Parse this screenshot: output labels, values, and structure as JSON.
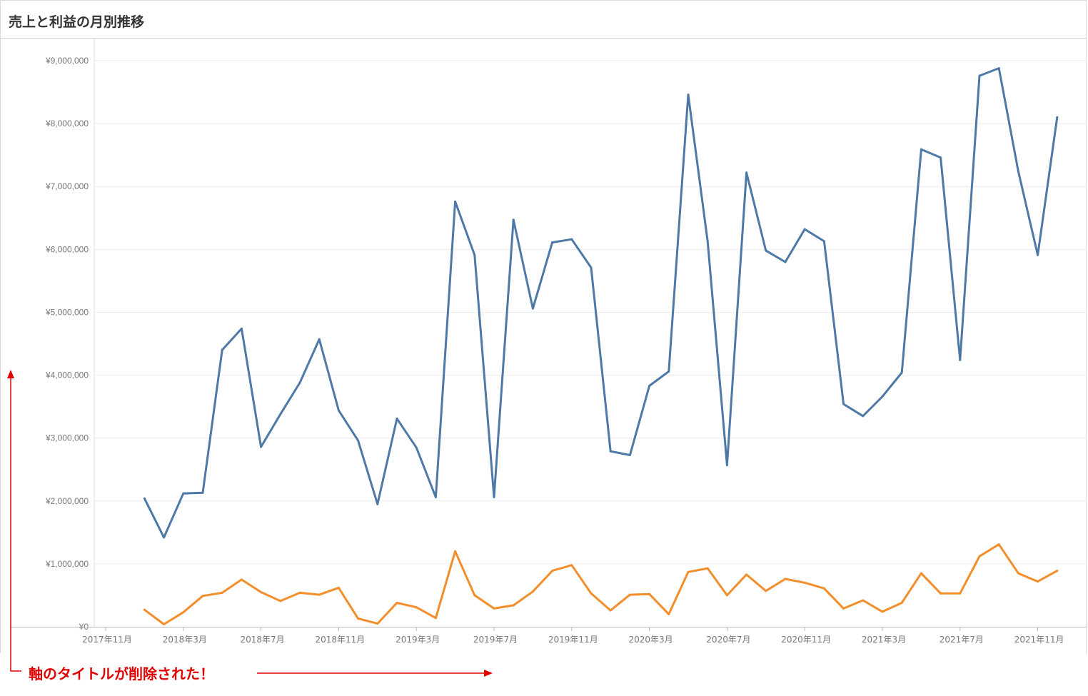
{
  "title": "売上と利益の月別推移",
  "annotation": "軸のタイトルが削除された！",
  "colors": {
    "sales": "#4e79a7",
    "profit": "#f28e2b",
    "annotation": "#e00000",
    "grid": "#ececec"
  },
  "chart_data": {
    "type": "line",
    "title": "売上と利益の月別推移",
    "xlabel": "",
    "ylabel": "",
    "ylim": [
      0,
      9000000
    ],
    "y_ticks": [
      {
        "value": 0,
        "label": "¥0"
      },
      {
        "value": 1000000,
        "label": "¥1,000,000"
      },
      {
        "value": 2000000,
        "label": "¥2,000,000"
      },
      {
        "value": 3000000,
        "label": "¥3,000,000"
      },
      {
        "value": 4000000,
        "label": "¥4,000,000"
      },
      {
        "value": 5000000,
        "label": "¥5,000,000"
      },
      {
        "value": 6000000,
        "label": "¥6,000,000"
      },
      {
        "value": 7000000,
        "label": "¥7,000,000"
      },
      {
        "value": 8000000,
        "label": "¥8,000,000"
      },
      {
        "value": 9000000,
        "label": "¥9,000,000"
      }
    ],
    "x": [
      "2018-01",
      "2018-02",
      "2018-03",
      "2018-04",
      "2018-05",
      "2018-06",
      "2018-07",
      "2018-08",
      "2018-09",
      "2018-10",
      "2018-11",
      "2018-12",
      "2019-01",
      "2019-02",
      "2019-03",
      "2019-04",
      "2019-05",
      "2019-06",
      "2019-07",
      "2019-08",
      "2019-09",
      "2019-10",
      "2019-11",
      "2019-12",
      "2020-01",
      "2020-02",
      "2020-03",
      "2020-04",
      "2020-05",
      "2020-06",
      "2020-07",
      "2020-08",
      "2020-09",
      "2020-10",
      "2020-11",
      "2020-12",
      "2021-01",
      "2021-02",
      "2021-03",
      "2021-04",
      "2021-05",
      "2021-06",
      "2021-07",
      "2021-08",
      "2021-09",
      "2021-10",
      "2021-11",
      "2021-12"
    ],
    "x_ticks": [
      {
        "value": "2017-11",
        "label": "2017年11月"
      },
      {
        "value": "2018-03",
        "label": "2018年3月"
      },
      {
        "value": "2018-07",
        "label": "2018年7月"
      },
      {
        "value": "2018-11",
        "label": "2018年11月"
      },
      {
        "value": "2019-03",
        "label": "2019年3月"
      },
      {
        "value": "2019-07",
        "label": "2019年7月"
      },
      {
        "value": "2019-11",
        "label": "2019年11月"
      },
      {
        "value": "2020-03",
        "label": "2020年3月"
      },
      {
        "value": "2020-07",
        "label": "2020年7月"
      },
      {
        "value": "2020-11",
        "label": "2020年11月"
      },
      {
        "value": "2021-03",
        "label": "2021年3月"
      },
      {
        "value": "2021-07",
        "label": "2021年7月"
      },
      {
        "value": "2021-11",
        "label": "2021年11月"
      }
    ],
    "series": [
      {
        "values": [
          2040000,
          1420000,
          2120000,
          2130000,
          4400000,
          4740000,
          2860000,
          3380000,
          3880000,
          4570000,
          3440000,
          2960000,
          1950000,
          3310000,
          2850000,
          2060000,
          6760000,
          5910000,
          2060000,
          6470000,
          5060000,
          6110000,
          6160000,
          5710000,
          2790000,
          2730000,
          3830000,
          4060000,
          8460000,
          6130000,
          2570000,
          7220000,
          5980000,
          5800000,
          6320000,
          6130000,
          3540000,
          3350000,
          3660000,
          4040000,
          7590000,
          7460000,
          4240000,
          8760000,
          8880000,
          7240000,
          5910000,
          8100000
        ]
      },
      {
        "values": [
          270000,
          40000,
          230000,
          490000,
          540000,
          750000,
          550000,
          410000,
          540000,
          510000,
          620000,
          130000,
          50000,
          380000,
          310000,
          140000,
          1200000,
          500000,
          290000,
          340000,
          560000,
          890000,
          980000,
          530000,
          260000,
          510000,
          520000,
          200000,
          870000,
          930000,
          500000,
          830000,
          570000,
          760000,
          700000,
          610000,
          290000,
          420000,
          240000,
          380000,
          850000,
          530000,
          530000,
          1120000,
          1310000,
          850000,
          720000,
          890000
        ]
      }
    ]
  }
}
